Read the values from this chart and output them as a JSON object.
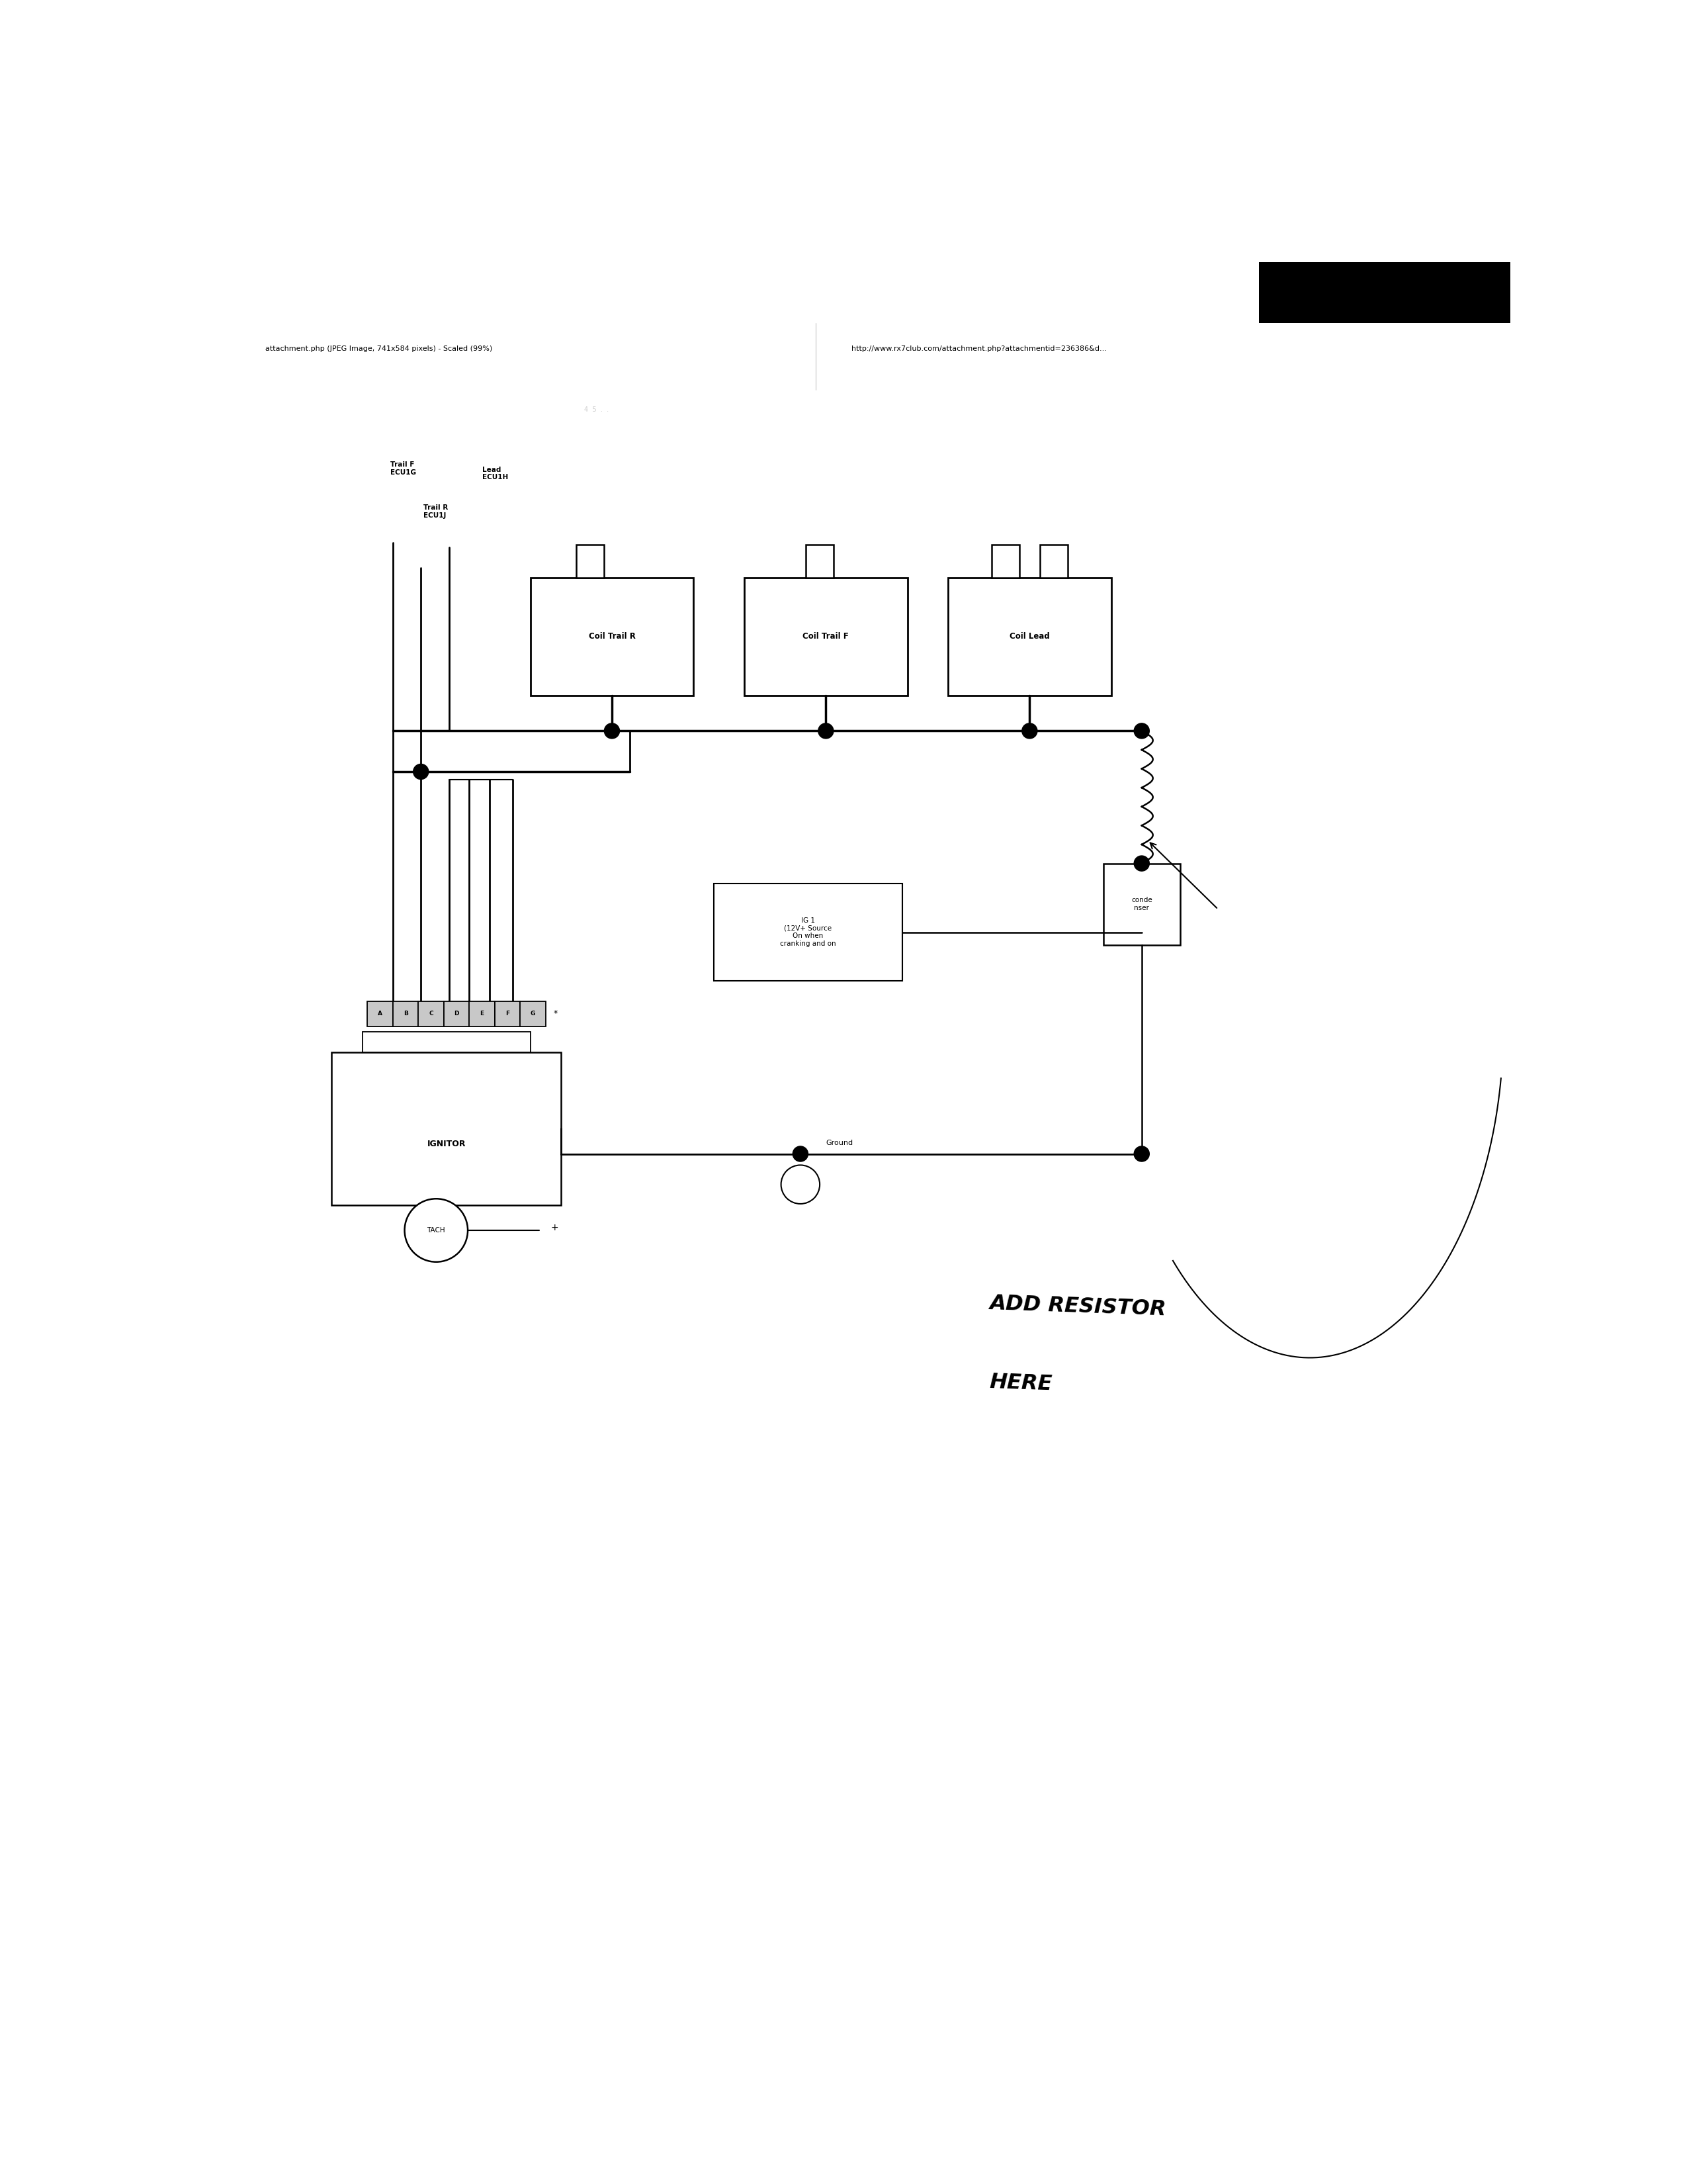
{
  "background_color": "#ffffff",
  "page_width": 25.44,
  "page_height": 33.0,
  "header_text_left": "attachment.php (JPEG Image, 741x584 pixels) - Scaled (99%)",
  "header_text_right": "http://www.rx7club.com/attachment.php?attachmentid=236386&d...",
  "label_trail_f": "Trail F\nECU1G",
  "label_trail_r": "Trail R\nECU1J",
  "label_lead": "Lead\nECU1H",
  "coil_trail_r_label": "Coil Trail R",
  "coil_trail_f_label": "Coil Trail F",
  "coil_lead_label": "Coil Lead",
  "ig1_label": "IG 1\n(12V+ Source\nOn when\ncranking and on",
  "ground_label": "Ground",
  "ignitor_label": "IGNITOR",
  "tach_label": "TACH",
  "condenser_label": "conde\nnser",
  "connector_labels": [
    "A",
    "B",
    "C",
    "D",
    "E",
    "F",
    "G"
  ],
  "star_label": "*",
  "handwritten_line1": "ADD RESISTOR",
  "handwritten_line2": "HERE"
}
